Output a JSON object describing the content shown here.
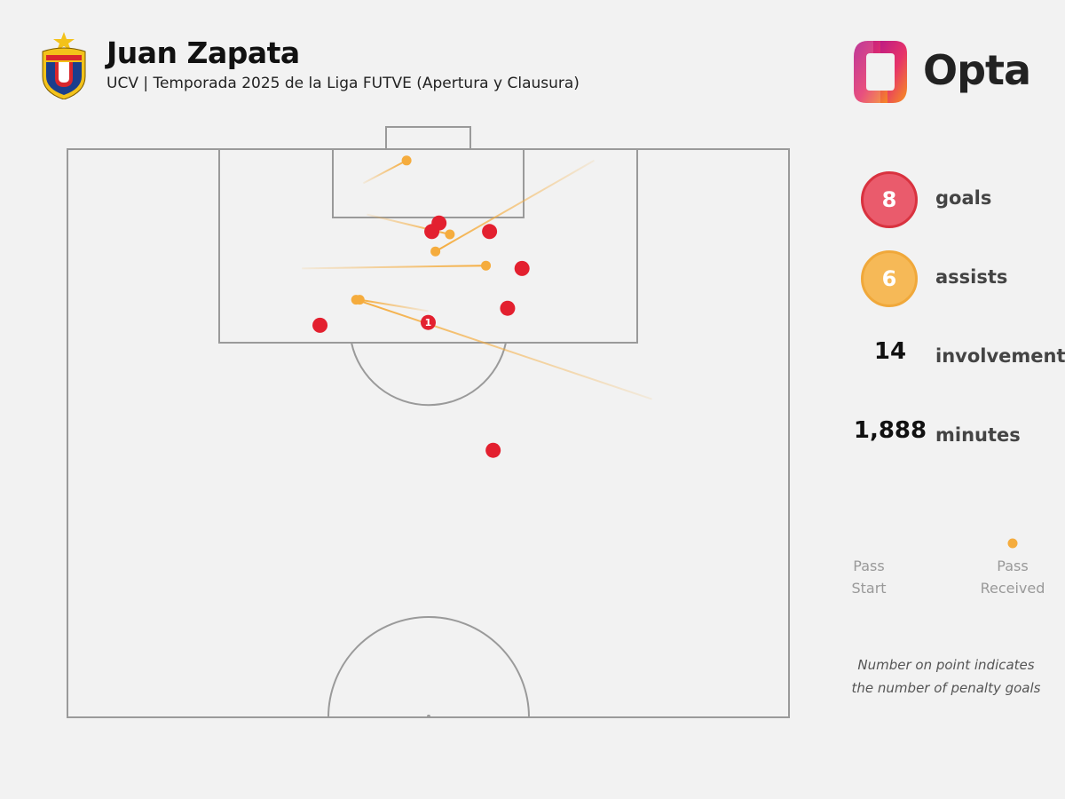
{
  "header": {
    "title": "Juan Zapata",
    "subtitle": "UCV | Temporada 2025 de la Liga FUTVE (Apertura y Clausura)",
    "brand": "Opta"
  },
  "stats": {
    "goals": {
      "value": "8",
      "label": "goals"
    },
    "assists": {
      "value": "6",
      "label": "assists"
    },
    "involvements": {
      "value": "14",
      "label": "involvements"
    },
    "minutes": {
      "value": "1,888",
      "label": "minutes"
    }
  },
  "legend": {
    "start_line1": "Pass",
    "start_line2": "Start",
    "end_line1": "Pass",
    "end_line2": "Received"
  },
  "note": {
    "line1": "Number on point indicates",
    "line2": "the number of penalty goals"
  },
  "colors": {
    "goal": "#e3202f",
    "assist": "#f5ac3d",
    "pitch_line": "#9a9a9a",
    "background": "#f2f2f2"
  },
  "chart_data": {
    "type": "scatter",
    "pitch": "half-pitch attacking upward; x = 0 left touchline to 100 right touchline, y = 0 own goal line to 100 opponent goal line",
    "goals": [
      {
        "x": 51.5,
        "y": 87,
        "penalty": 0
      },
      {
        "x": 50.5,
        "y": 85.5,
        "penalty": 0
      },
      {
        "x": 58.5,
        "y": 85.5,
        "penalty": 0
      },
      {
        "x": 63,
        "y": 79,
        "penalty": 0
      },
      {
        "x": 61,
        "y": 72,
        "penalty": 0
      },
      {
        "x": 50,
        "y": 69.5,
        "penalty": 1
      },
      {
        "x": 35,
        "y": 69,
        "penalty": 0
      },
      {
        "x": 59,
        "y": 47,
        "penalty": 0
      }
    ],
    "assists": [
      {
        "start_x": 41,
        "start_y": 94,
        "end_x": 47,
        "end_y": 98
      },
      {
        "start_x": 41.5,
        "start_y": 88.5,
        "end_x": 53,
        "end_y": 85
      },
      {
        "start_x": 32.5,
        "start_y": 79,
        "end_x": 58,
        "end_y": 79.5
      },
      {
        "start_x": 73,
        "start_y": 98,
        "end_x": 51,
        "end_y": 82
      },
      {
        "start_x": 50,
        "start_y": 71.5,
        "end_x": 40.5,
        "end_y": 73.5
      },
      {
        "start_x": 81,
        "start_y": 56,
        "end_x": 40,
        "end_y": 73.5
      }
    ]
  }
}
